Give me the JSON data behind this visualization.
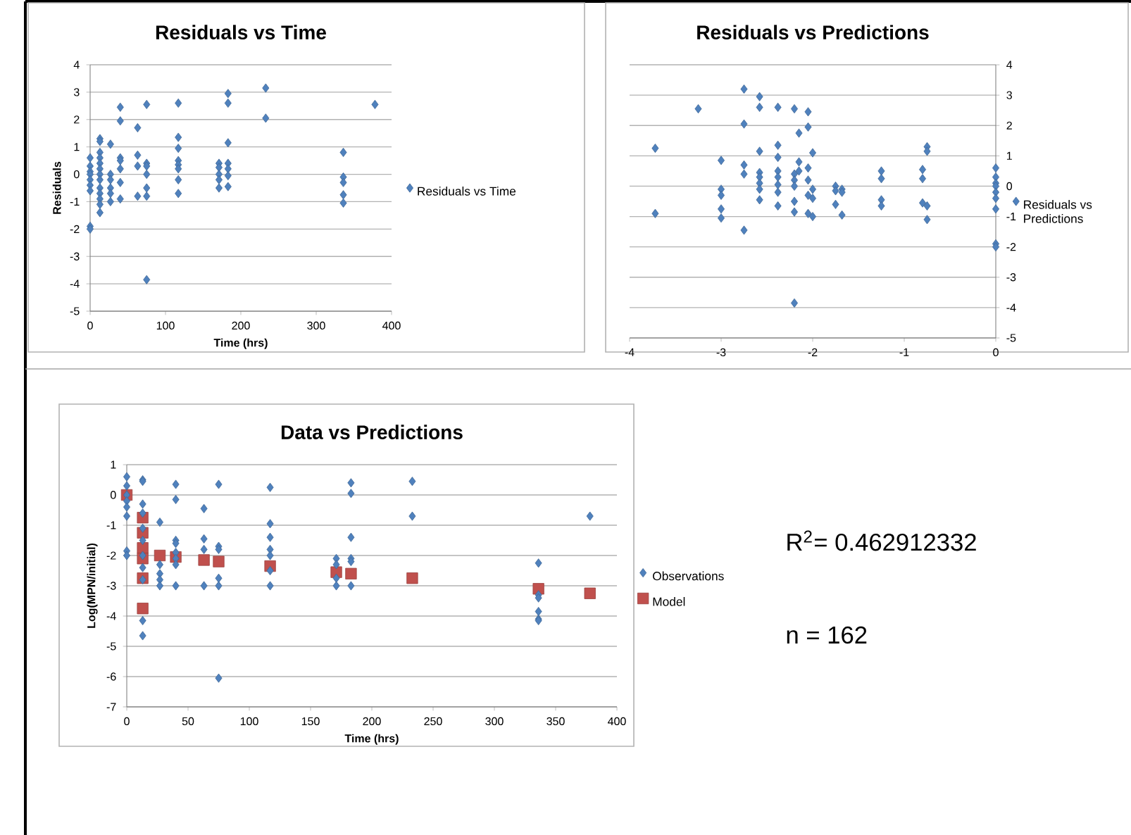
{
  "chart_data": [
    {
      "type": "scatter",
      "title": "Residuals vs Time",
      "xlabel": "Time (hrs)",
      "ylabel": "Residuals",
      "xlim": [
        0,
        400
      ],
      "ylim": [
        -5,
        4
      ],
      "xticks": [
        0,
        100,
        200,
        300,
        400
      ],
      "yticks": [
        -5,
        -4,
        -3,
        -2,
        -1,
        0,
        1,
        2,
        3,
        4
      ],
      "grid": "y",
      "legend": "right",
      "marker": "diamond",
      "series": [
        {
          "name": "Residuals vs Time",
          "color": "#4f81bd",
          "x": [
            0,
            0,
            0,
            0,
            0,
            0,
            0,
            0,
            0,
            13,
            13,
            13,
            13,
            13,
            13,
            13,
            13,
            13,
            13,
            13,
            13,
            13,
            27,
            27,
            27,
            27,
            27,
            27,
            40,
            40,
            40,
            40,
            40,
            40,
            40,
            63,
            63,
            63,
            63,
            75,
            75,
            75,
            75,
            75,
            75,
            75,
            117,
            117,
            117,
            117,
            117,
            117,
            117,
            117,
            171,
            171,
            171,
            171,
            171,
            183,
            183,
            183,
            183,
            183,
            183,
            183,
            233,
            233,
            336,
            336,
            336,
            336,
            336,
            378
          ],
          "values": [
            0.6,
            0.3,
            0.1,
            0,
            -0.2,
            -0.4,
            -0.6,
            -1.9,
            -2.0,
            1.3,
            1.2,
            0.8,
            0.6,
            0.4,
            0.2,
            0,
            -0.2,
            -0.5,
            -0.7,
            -0.9,
            -1.1,
            -1.4,
            1.1,
            0,
            -0.2,
            -0.5,
            -0.7,
            -1.0,
            2.45,
            1.95,
            0.6,
            0.5,
            0.2,
            -0.3,
            -0.9,
            1.7,
            0.7,
            0.3,
            -0.8,
            2.55,
            0.4,
            0.3,
            0,
            -0.5,
            -0.8,
            -3.85,
            2.6,
            1.35,
            0.95,
            0.5,
            0.35,
            0.2,
            -0.2,
            -0.7,
            0.4,
            0.25,
            0,
            -0.2,
            -0.5,
            2.95,
            2.6,
            1.15,
            0.4,
            0.2,
            -0.05,
            -0.45,
            3.15,
            2.05,
            0.8,
            -0.1,
            -0.3,
            -0.75,
            -1.05,
            2.55
          ]
        }
      ]
    },
    {
      "type": "scatter",
      "title": "Residuals vs Predictions",
      "xlim": [
        -4,
        0
      ],
      "ylim": [
        -5,
        4
      ],
      "xticks": [
        -4,
        -3,
        -2,
        -1,
        0
      ],
      "yticks": [
        -5,
        -4,
        -3,
        -2,
        -1,
        0,
        1,
        2,
        3,
        4
      ],
      "grid": "y",
      "legend": "right",
      "marker": "diamond",
      "series": [
        {
          "name": "Residuals vs Predictions",
          "color": "#4f81bd",
          "x": [
            -3.72,
            -3.72,
            -3.25,
            -3.0,
            -3.0,
            -3.0,
            -3.0,
            -3.0,
            -2.75,
            -2.75,
            -2.75,
            -2.75,
            -2.75,
            -2.58,
            -2.58,
            -2.58,
            -2.58,
            -2.58,
            -2.58,
            -2.58,
            -2.58,
            -2.38,
            -2.38,
            -2.38,
            -2.38,
            -2.38,
            -2.38,
            -2.38,
            -2.38,
            -2.2,
            -2.2,
            -2.2,
            -2.2,
            -2.2,
            -2.2,
            -2.2,
            -2.15,
            -2.15,
            -2.15,
            -2.05,
            -2.05,
            -2.05,
            -2.05,
            -2.05,
            -2.05,
            -2.0,
            -2.0,
            -2.0,
            -2.0,
            -1.75,
            -1.75,
            -1.75,
            -1.68,
            -1.68,
            -1.68,
            -1.25,
            -1.25,
            -1.25,
            -1.25,
            -0.8,
            -0.8,
            -0.8,
            -0.75,
            -0.75,
            -0.75,
            -0.75,
            0,
            0,
            0,
            0,
            0,
            0,
            0,
            0,
            0
          ],
          "values": [
            1.25,
            -0.9,
            2.55,
            0.85,
            -0.1,
            -0.3,
            -0.75,
            -1.05,
            3.2,
            2.05,
            0.7,
            0.4,
            -1.45,
            2.95,
            2.6,
            1.15,
            0.45,
            0.3,
            0.1,
            -0.1,
            -0.45,
            2.6,
            1.35,
            0.95,
            0.5,
            0.3,
            0.05,
            -0.2,
            -0.65,
            2.55,
            0.4,
            0.2,
            0,
            -0.5,
            -0.85,
            -3.85,
            1.75,
            0.8,
            0.5,
            2.45,
            1.95,
            0.6,
            0.2,
            -0.3,
            -0.9,
            1.1,
            -0.1,
            -0.4,
            -1.0,
            0,
            -0.15,
            -0.6,
            -0.1,
            -0.2,
            -0.95,
            0.5,
            0.25,
            -0.45,
            -0.65,
            0.55,
            0.25,
            -0.55,
            1.3,
            1.15,
            -0.65,
            -1.1,
            0.6,
            0.3,
            0.1,
            0,
            -0.2,
            -0.4,
            -0.75,
            -1.9,
            -2.0
          ]
        }
      ]
    },
    {
      "type": "scatter",
      "title": "Data vs Predictions",
      "xlabel": "Time (hrs)",
      "ylabel": "Log(MPN/initial)",
      "xlim": [
        0,
        400
      ],
      "ylim": [
        -7,
        1
      ],
      "xticks": [
        0,
        50,
        100,
        150,
        200,
        250,
        300,
        350,
        400
      ],
      "yticks": [
        -7,
        -6,
        -5,
        -4,
        -3,
        -2,
        -1,
        0,
        1
      ],
      "grid": "y",
      "legend": "right",
      "marker": "diamond",
      "annotations": [
        "R$^{2}$= 0.462912332",
        "n = 162"
      ],
      "series": [
        {
          "name": "Observations",
          "color": "#4f81bd",
          "x": [
            0,
            0,
            0,
            0,
            0,
            0,
            0,
            0,
            13,
            13,
            13,
            13,
            13,
            13,
            13,
            13,
            13,
            13,
            13,
            27,
            27,
            27,
            27,
            27,
            40,
            40,
            40,
            40,
            40,
            40,
            40,
            40,
            63,
            63,
            63,
            63,
            75,
            75,
            75,
            75,
            75,
            75,
            117,
            117,
            117,
            117,
            117,
            117,
            117,
            171,
            171,
            171,
            171,
            183,
            183,
            183,
            183,
            183,
            183,
            233,
            233,
            336,
            336,
            336,
            336,
            336,
            336,
            378
          ],
          "values": [
            0.6,
            0.3,
            0,
            -0.2,
            -0.4,
            -0.7,
            -1.85,
            -2.0,
            0.5,
            0.45,
            -0.3,
            -0.6,
            -1.1,
            -1.5,
            -2.0,
            -2.4,
            -2.8,
            -4.15,
            -4.65,
            -0.9,
            -2.3,
            -2.6,
            -2.8,
            -3.0,
            0.35,
            -0.15,
            -1.5,
            -1.6,
            -1.9,
            -2.1,
            -2.3,
            -3.0,
            -0.45,
            -1.45,
            -1.8,
            -3.0,
            0.35,
            -1.7,
            -1.8,
            -2.75,
            -3.0,
            -6.05,
            0.25,
            -0.95,
            -1.4,
            -1.8,
            -2.0,
            -2.5,
            -3.0,
            -2.1,
            -2.3,
            -2.75,
            -3.0,
            0.4,
            0.05,
            -1.4,
            -2.1,
            -2.2,
            -3.0,
            0.45,
            -0.7,
            -2.25,
            -3.3,
            -3.4,
            -3.85,
            -4.1,
            -4.15,
            -0.7
          ]
        },
        {
          "name": "Model",
          "color": "#c0504d",
          "marker": "square",
          "x": [
            0,
            13,
            13,
            13,
            13,
            13,
            13,
            27,
            40,
            63,
            75,
            117,
            171,
            183,
            233,
            336,
            378
          ],
          "values": [
            0,
            -0.75,
            -1.25,
            -1.75,
            -2.1,
            -2.75,
            -3.75,
            -2.0,
            -2.05,
            -2.15,
            -2.2,
            -2.35,
            -2.55,
            -2.6,
            -2.75,
            -3.1,
            -3.25
          ]
        }
      ]
    }
  ]
}
